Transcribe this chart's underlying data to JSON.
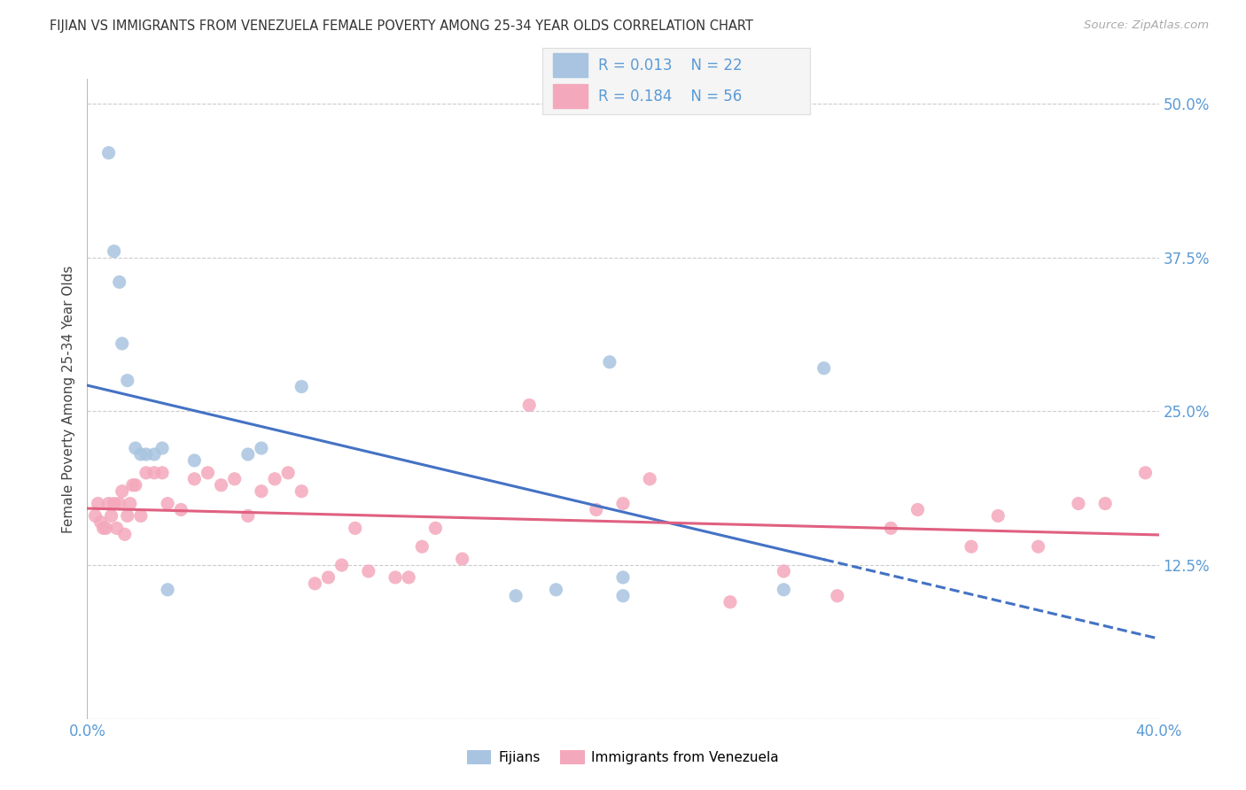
{
  "title": "FIJIAN VS IMMIGRANTS FROM VENEZUELA FEMALE POVERTY AMONG 25-34 YEAR OLDS CORRELATION CHART",
  "source": "Source: ZipAtlas.com",
  "ylabel": "Female Poverty Among 25-34 Year Olds",
  "xlim": [
    0.0,
    0.4
  ],
  "ylim": [
    0.0,
    0.52
  ],
  "xticks": [
    0.0,
    0.05,
    0.1,
    0.15,
    0.2,
    0.25,
    0.3,
    0.35,
    0.4
  ],
  "xticklabels": [
    "0.0%",
    "",
    "",
    "",
    "",
    "",
    "",
    "",
    "40.0%"
  ],
  "yticks": [
    0.0,
    0.125,
    0.25,
    0.375,
    0.5
  ],
  "yticklabels_right": [
    "",
    "12.5%",
    "25.0%",
    "37.5%",
    "50.0%"
  ],
  "grid_color": "#cccccc",
  "bg_color": "#ffffff",
  "fijian_color": "#a8c4e0",
  "venezuela_color": "#f4a8bc",
  "fijian_line_color": "#4472c4",
  "venezuela_line_color": "#e06080",
  "tick_label_color": "#5b9bd5",
  "legend_bg": "#f5f5f5",
  "legend_border": "#dddddd",
  "fijian_label": "Fijians",
  "venezuela_label": "Immigrants from Venezuela",
  "fijian_x": [
    0.008,
    0.01,
    0.012,
    0.013,
    0.015,
    0.018,
    0.02,
    0.022,
    0.025,
    0.028,
    0.03,
    0.04,
    0.06,
    0.065,
    0.08,
    0.16,
    0.175,
    0.195,
    0.2,
    0.2,
    0.26,
    0.275
  ],
  "fijian_y": [
    0.46,
    0.38,
    0.355,
    0.305,
    0.275,
    0.22,
    0.215,
    0.215,
    0.215,
    0.22,
    0.105,
    0.21,
    0.215,
    0.22,
    0.27,
    0.1,
    0.105,
    0.29,
    0.115,
    0.1,
    0.105,
    0.285
  ],
  "venezuela_x": [
    0.003,
    0.004,
    0.005,
    0.006,
    0.007,
    0.008,
    0.009,
    0.01,
    0.011,
    0.012,
    0.013,
    0.014,
    0.015,
    0.016,
    0.017,
    0.018,
    0.02,
    0.022,
    0.025,
    0.028,
    0.03,
    0.035,
    0.04,
    0.045,
    0.05,
    0.055,
    0.06,
    0.065,
    0.07,
    0.075,
    0.08,
    0.085,
    0.09,
    0.095,
    0.1,
    0.105,
    0.115,
    0.12,
    0.125,
    0.13,
    0.14,
    0.165,
    0.19,
    0.2,
    0.21,
    0.24,
    0.26,
    0.28,
    0.3,
    0.31,
    0.33,
    0.34,
    0.355,
    0.37,
    0.38,
    0.395
  ],
  "venezuela_y": [
    0.165,
    0.175,
    0.16,
    0.155,
    0.155,
    0.175,
    0.165,
    0.175,
    0.155,
    0.175,
    0.185,
    0.15,
    0.165,
    0.175,
    0.19,
    0.19,
    0.165,
    0.2,
    0.2,
    0.2,
    0.175,
    0.17,
    0.195,
    0.2,
    0.19,
    0.195,
    0.165,
    0.185,
    0.195,
    0.2,
    0.185,
    0.11,
    0.115,
    0.125,
    0.155,
    0.12,
    0.115,
    0.115,
    0.14,
    0.155,
    0.13,
    0.255,
    0.17,
    0.175,
    0.195,
    0.095,
    0.12,
    0.1,
    0.155,
    0.17,
    0.14,
    0.165,
    0.14,
    0.175,
    0.175,
    0.2
  ]
}
